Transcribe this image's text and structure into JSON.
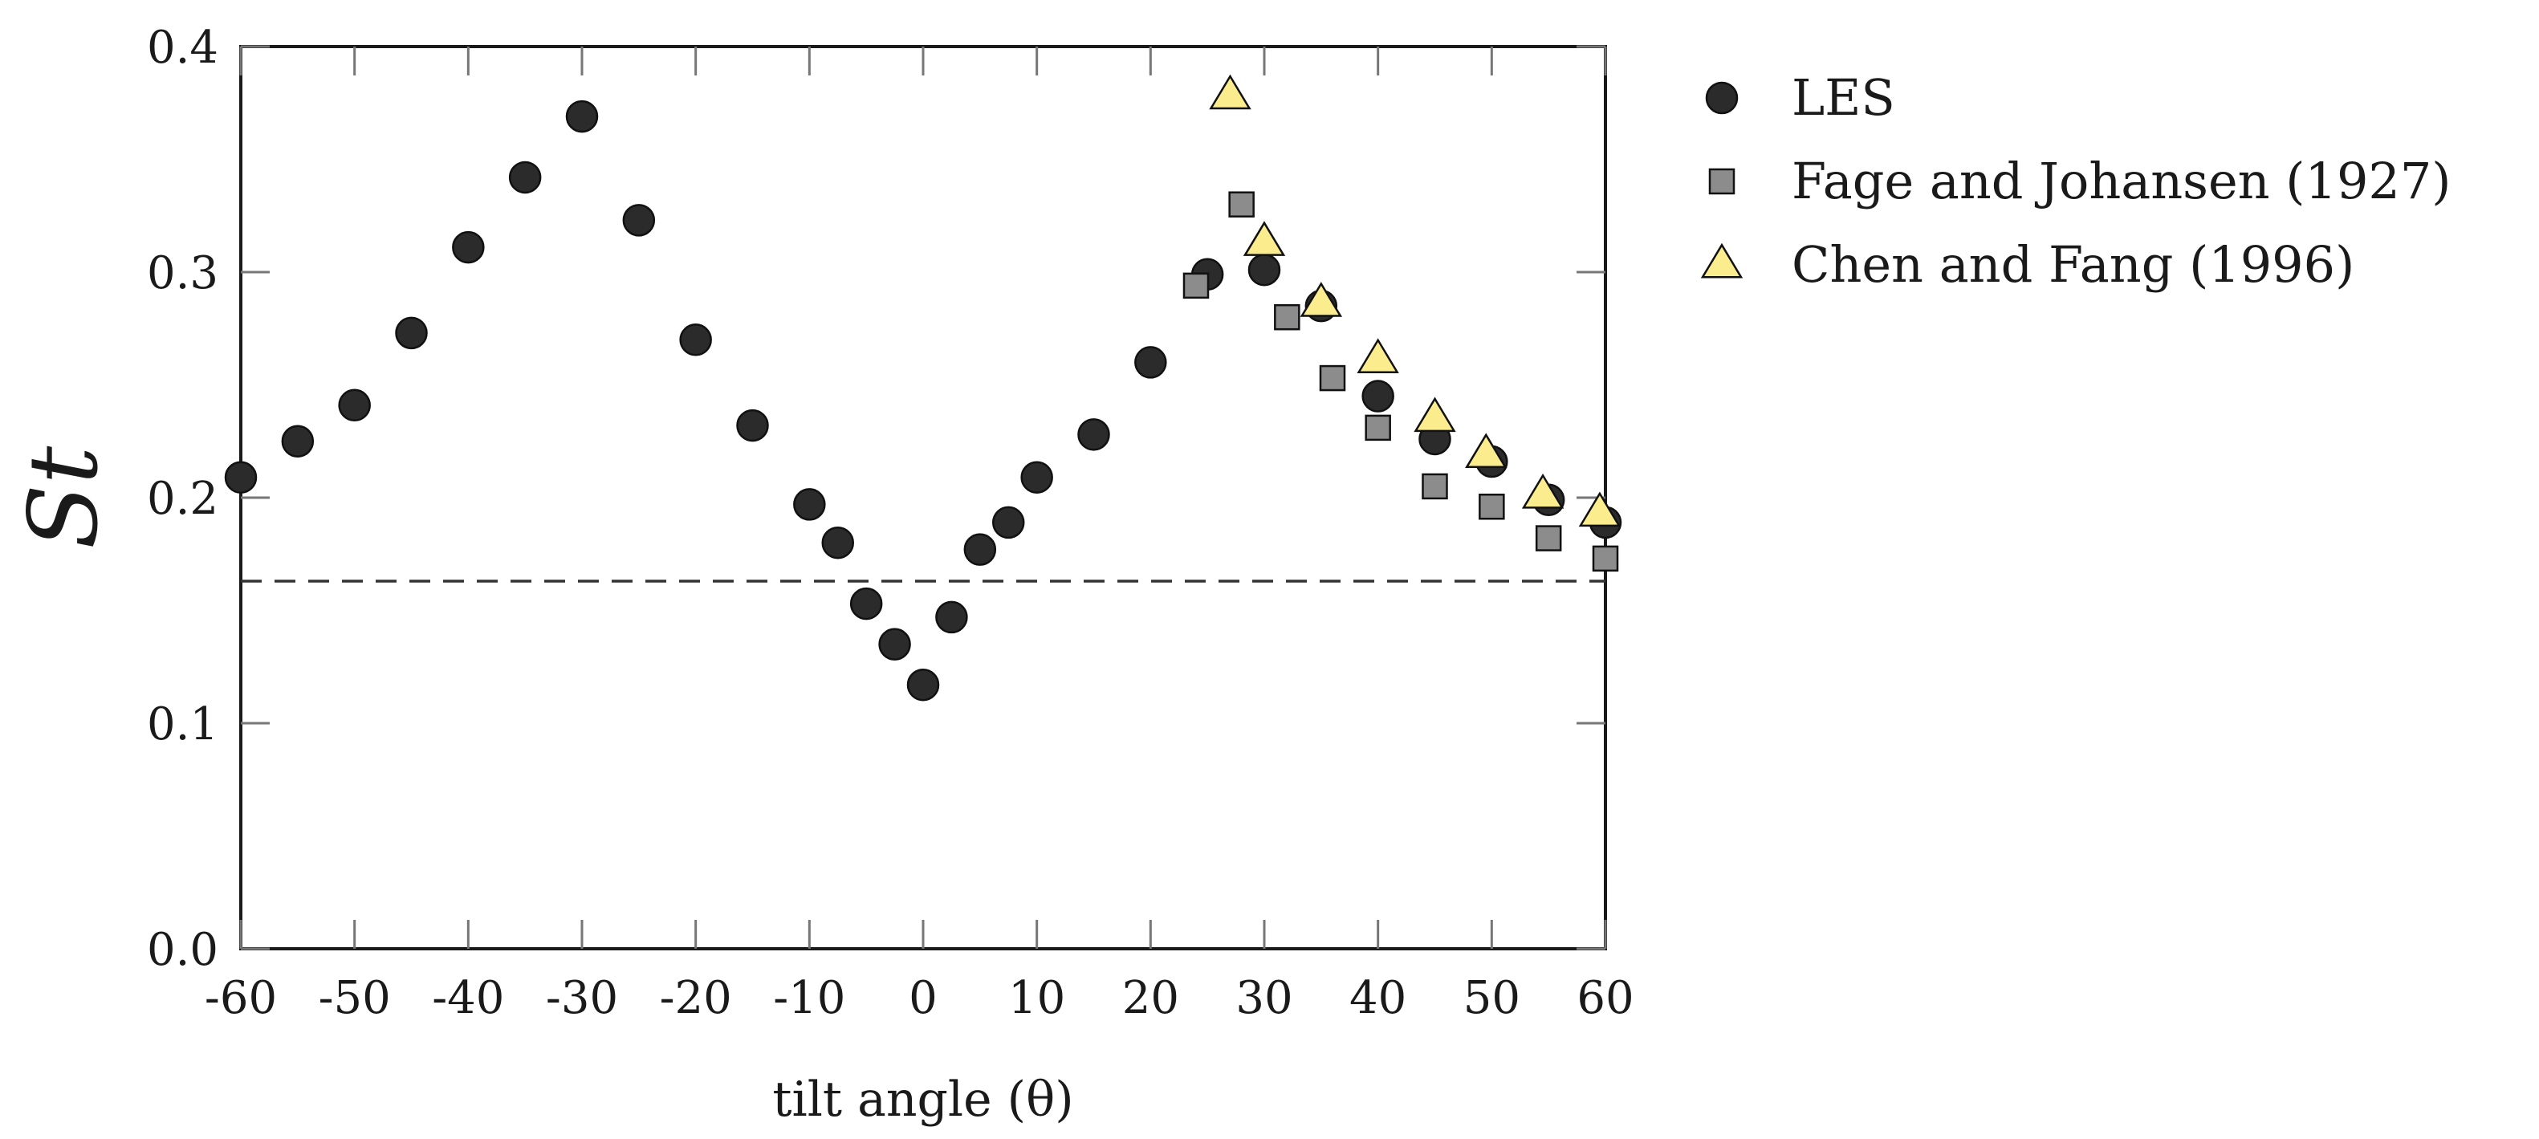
{
  "chart_data": {
    "type": "scatter",
    "title": "",
    "xlabel": "tilt angle (θ)",
    "ylabel": "St",
    "xlim": [
      -60,
      60
    ],
    "ylim": [
      0.0,
      0.4
    ],
    "x_ticks": [
      "-60",
      "-50",
      "-40",
      "-30",
      "-20",
      "-10",
      "0",
      "10",
      "20",
      "30",
      "40",
      "50",
      "60"
    ],
    "x_tick_values": [
      -60,
      -50,
      -40,
      -30,
      -20,
      -10,
      0,
      10,
      20,
      30,
      40,
      50,
      60
    ],
    "y_ticks": [
      "0.0",
      "0.1",
      "0.2",
      "0.3",
      "0.4"
    ],
    "y_tick_values": [
      0.0,
      0.1,
      0.2,
      0.3,
      0.4
    ],
    "grid": false,
    "legend_position": "outside-top-right",
    "reference_line": {
      "style": "dashed",
      "y": 0.163
    },
    "series": [
      {
        "name": "LES",
        "marker": "circle",
        "color": "#2b2b2b",
        "points": [
          [
            -60,
            0.209
          ],
          [
            -55,
            0.225
          ],
          [
            -50,
            0.241
          ],
          [
            -45,
            0.273
          ],
          [
            -40,
            0.311
          ],
          [
            -35,
            0.342
          ],
          [
            -30,
            0.369
          ],
          [
            -25,
            0.323
          ],
          [
            -20,
            0.27
          ],
          [
            -15,
            0.232
          ],
          [
            -10,
            0.197
          ],
          [
            -7.5,
            0.18
          ],
          [
            -5,
            0.153
          ],
          [
            -2.5,
            0.135
          ],
          [
            0,
            0.117
          ],
          [
            2.5,
            0.147
          ],
          [
            5,
            0.177
          ],
          [
            7.5,
            0.189
          ],
          [
            10,
            0.209
          ],
          [
            15,
            0.228
          ],
          [
            20,
            0.26
          ],
          [
            25,
            0.299
          ],
          [
            30,
            0.301
          ],
          [
            35,
            0.285
          ],
          [
            40,
            0.245
          ],
          [
            45,
            0.226
          ],
          [
            50,
            0.216
          ],
          [
            55,
            0.199
          ],
          [
            60,
            0.189
          ]
        ]
      },
      {
        "name": "Fage and Johansen (1927)",
        "marker": "square",
        "color": "#8c8c8c",
        "points": [
          [
            24,
            0.294
          ],
          [
            28,
            0.33
          ],
          [
            32,
            0.28
          ],
          [
            36,
            0.253
          ],
          [
            40,
            0.231
          ],
          [
            45,
            0.205
          ],
          [
            50,
            0.196
          ],
          [
            55,
            0.182
          ],
          [
            60,
            0.173
          ]
        ]
      },
      {
        "name": "Chen and Fang (1996)",
        "marker": "triangle",
        "color": "#fbec8e",
        "points": [
          [
            27,
            0.378
          ],
          [
            30,
            0.313
          ],
          [
            35,
            0.286
          ],
          [
            40,
            0.261
          ],
          [
            45,
            0.235
          ],
          [
            49.5,
            0.219
          ],
          [
            54.5,
            0.201
          ],
          [
            59.5,
            0.193
          ]
        ]
      }
    ]
  }
}
